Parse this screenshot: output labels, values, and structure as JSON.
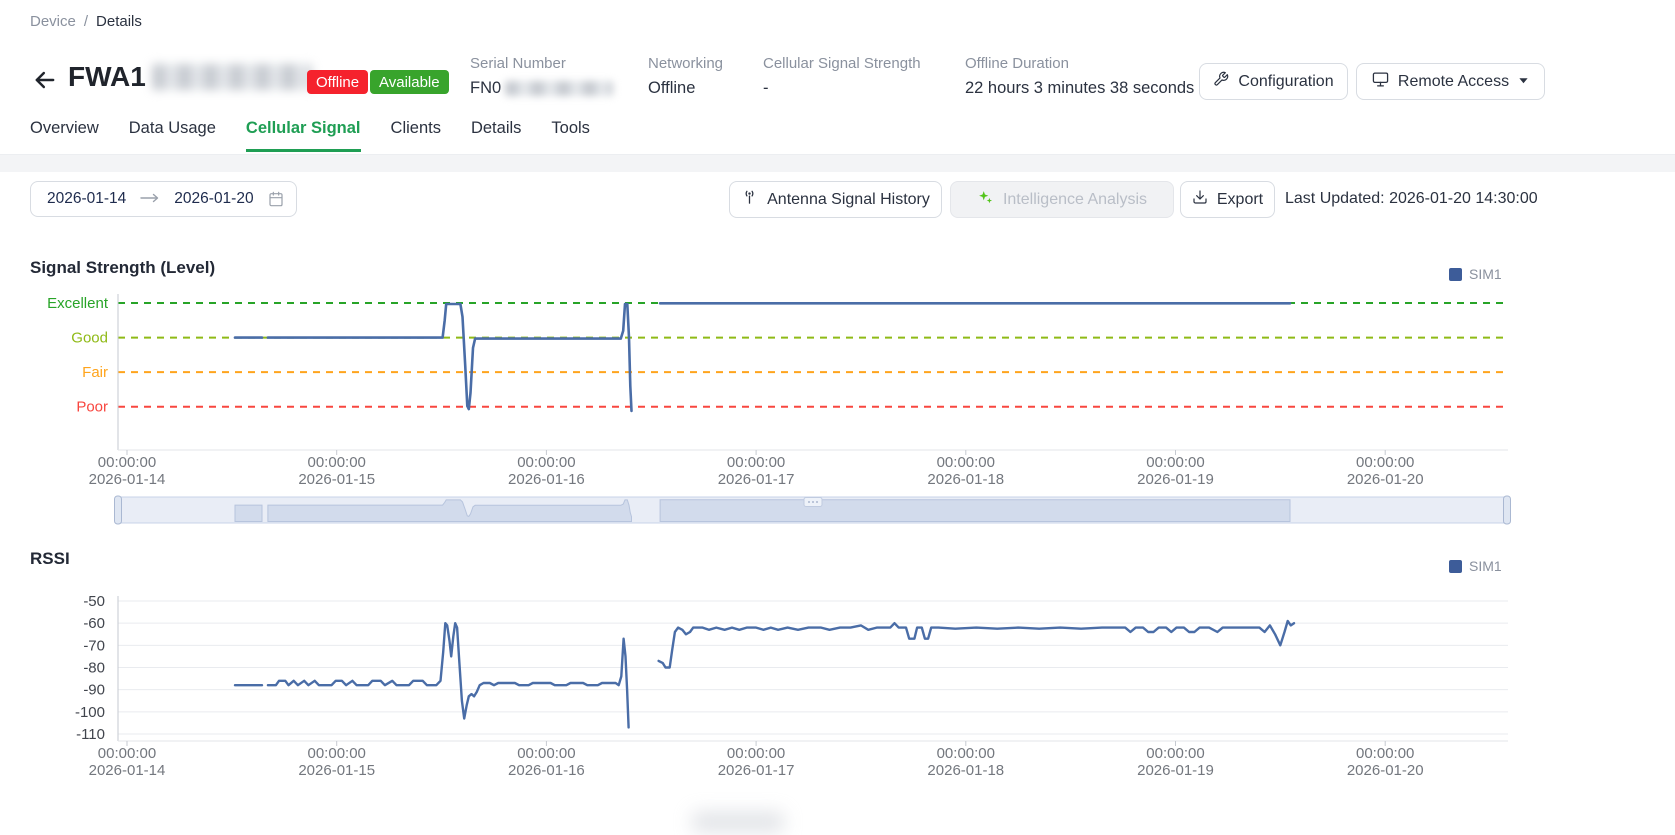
{
  "breadcrumb": {
    "parent": "Device",
    "separator": "/",
    "current": "Details"
  },
  "header": {
    "back_icon": "arrow-left",
    "device_name_prefix": "FWA1",
    "device_name_masked": true,
    "badges": [
      {
        "label": "Offline",
        "color": "#f5222d"
      },
      {
        "label": "Available",
        "color": "#38a42c"
      }
    ],
    "info": [
      {
        "label": "Serial Number",
        "value": "FN0",
        "value_masked": true
      },
      {
        "label": "Networking",
        "value": "Offline"
      },
      {
        "label": "Cellular Signal Strength",
        "value": "-"
      },
      {
        "label": "Offline Duration",
        "value": "22 hours 3 minutes 38 seconds"
      }
    ],
    "buttons": [
      {
        "label": "Configuration",
        "icon": "wrench-icon"
      },
      {
        "label": "Remote Access",
        "icon": "monitor-icon",
        "caret": "caret-down-icon"
      }
    ]
  },
  "tabs": {
    "items": [
      {
        "label": "Overview"
      },
      {
        "label": "Data Usage"
      },
      {
        "label": "Cellular Signal"
      },
      {
        "label": "Clients"
      },
      {
        "label": "Details"
      },
      {
        "label": "Tools"
      }
    ],
    "active": "Cellular Signal",
    "active_color": "#1f9e54"
  },
  "controls": {
    "date_start": "2026-01-14",
    "date_end": "2026-01-20",
    "date_arrow_icon": "arrow-right-icon",
    "calendar_icon": "calendar-icon",
    "antenna_button": {
      "label": "Antenna Signal History",
      "icon": "antenna-icon"
    },
    "intelligence_button": {
      "label": "Intelligence Analysis",
      "icon": "sparkles-icon",
      "disabled": true,
      "icon_color": "#52c41a"
    },
    "export_button": {
      "label": "Export",
      "icon": "download-icon"
    },
    "last_updated": "Last Updated: 2026-01-20 14:30:00"
  },
  "colors": {
    "series_blue": "#4a6da7",
    "legend_blue": "#3d5c99",
    "excellent": "#28a428",
    "good": "#8fba16",
    "fair": "#ffa41c",
    "poor": "#f8463f",
    "grid_gray": "#e9ebef",
    "axis_gray": "#c6cad1",
    "tick_text": "#73777e"
  },
  "chart_data": [
    {
      "type": "line",
      "title": "Signal Strength (Level)",
      "legend": [
        "SIM1"
      ],
      "legend_position": "top-right",
      "series_color": "#4a6da7",
      "y_axis": {
        "type": "category",
        "categories": [
          {
            "name": "Excellent",
            "color": "#28a428",
            "level": 4
          },
          {
            "name": "Good",
            "color": "#8fba16",
            "level": 3
          },
          {
            "name": "Fair",
            "color": "#ffa41c",
            "level": 2
          },
          {
            "name": "Poor",
            "color": "#f8463f",
            "level": 1
          }
        ],
        "gridline_style": "dashed"
      },
      "x_ticks": [
        {
          "time": "00:00:00",
          "date": "2026-01-14"
        },
        {
          "time": "00:00:00",
          "date": "2026-01-15"
        },
        {
          "time": "00:00:00",
          "date": "2026-01-16"
        },
        {
          "time": "00:00:00",
          "date": "2026-01-17"
        },
        {
          "time": "00:00:00",
          "date": "2026-01-18"
        },
        {
          "time": "00:00:00",
          "date": "2026-01-19"
        },
        {
          "time": "00:00:00",
          "date": "2026-01-20"
        }
      ],
      "x_unit": "days_since_2026-01-14",
      "segments": [
        [
          [
            0.515,
            3
          ],
          [
            0.644,
            3
          ]
        ],
        [
          [
            0.672,
            3
          ],
          [
            1.505,
            3
          ],
          [
            1.515,
            3.5
          ],
          [
            1.522,
            3.97
          ],
          [
            1.59,
            3.97
          ],
          [
            1.6,
            3.6
          ],
          [
            1.613,
            2.2
          ],
          [
            1.623,
            1.02
          ],
          [
            1.63,
            0.93
          ],
          [
            1.638,
            1.4
          ],
          [
            1.65,
            2.7
          ],
          [
            1.66,
            2.97
          ],
          [
            2.355,
            2.97
          ],
          [
            2.366,
            3.2
          ],
          [
            2.375,
            3.97
          ],
          [
            2.386,
            3.97
          ],
          [
            2.394,
            3.0
          ],
          [
            2.4,
            1.6
          ],
          [
            2.406,
            0.88
          ]
        ],
        [
          [
            2.542,
            3.99
          ],
          [
            5.546,
            3.99
          ]
        ]
      ],
      "has_datazoom_brush": true
    },
    {
      "type": "line",
      "title": "RSSI",
      "legend": [
        "SIM1"
      ],
      "legend_position": "top-right",
      "series_color": "#4a6da7",
      "ylim": [
        -110,
        -50
      ],
      "y_ticks": [
        -50,
        -60,
        -70,
        -80,
        -90,
        -100,
        -110
      ],
      "x_ticks": [
        {
          "time": "00:00:00",
          "date": "2026-01-14"
        },
        {
          "time": "00:00:00",
          "date": "2026-01-15"
        },
        {
          "time": "00:00:00",
          "date": "2026-01-16"
        },
        {
          "time": "00:00:00",
          "date": "2026-01-17"
        },
        {
          "time": "00:00:00",
          "date": "2026-01-18"
        },
        {
          "time": "00:00:00",
          "date": "2026-01-19"
        },
        {
          "time": "00:00:00",
          "date": "2026-01-20"
        }
      ],
      "x_unit": "days_since_2026-01-14",
      "segments": [
        [
          [
            0.515,
            -88
          ],
          [
            0.644,
            -88
          ]
        ],
        [
          [
            0.672,
            -88
          ],
          [
            0.71,
            -88
          ],
          [
            0.725,
            -86
          ],
          [
            0.755,
            -86
          ],
          [
            0.77,
            -88
          ],
          [
            0.795,
            -86
          ],
          [
            0.815,
            -88
          ],
          [
            0.845,
            -86
          ],
          [
            0.865,
            -88
          ],
          [
            0.895,
            -86
          ],
          [
            0.915,
            -88
          ],
          [
            0.975,
            -88
          ],
          [
            0.995,
            -86
          ],
          [
            1.025,
            -86
          ],
          [
            1.045,
            -88
          ],
          [
            1.075,
            -86
          ],
          [
            1.095,
            -88
          ],
          [
            1.15,
            -88
          ],
          [
            1.17,
            -86
          ],
          [
            1.21,
            -86
          ],
          [
            1.23,
            -88
          ],
          [
            1.265,
            -86
          ],
          [
            1.285,
            -88
          ],
          [
            1.345,
            -88
          ],
          [
            1.365,
            -86
          ],
          [
            1.41,
            -86
          ],
          [
            1.43,
            -88
          ],
          [
            1.475,
            -88
          ],
          [
            1.495,
            -86
          ],
          [
            1.508,
            -73
          ],
          [
            1.518,
            -60
          ],
          [
            1.527,
            -61
          ],
          [
            1.538,
            -68
          ],
          [
            1.546,
            -75
          ],
          [
            1.556,
            -66
          ],
          [
            1.565,
            -60
          ],
          [
            1.574,
            -62
          ],
          [
            1.585,
            -78
          ],
          [
            1.597,
            -95
          ],
          [
            1.608,
            -103
          ],
          [
            1.62,
            -97
          ],
          [
            1.63,
            -93
          ],
          [
            1.643,
            -92
          ],
          [
            1.655,
            -93
          ],
          [
            1.668,
            -91
          ],
          [
            1.682,
            -88
          ],
          [
            1.7,
            -87
          ],
          [
            1.73,
            -87
          ],
          [
            1.75,
            -88
          ],
          [
            1.77,
            -87
          ],
          [
            1.85,
            -87
          ],
          [
            1.87,
            -88
          ],
          [
            1.915,
            -88
          ],
          [
            1.935,
            -87
          ],
          [
            2.02,
            -87
          ],
          [
            2.04,
            -88
          ],
          [
            2.095,
            -88
          ],
          [
            2.115,
            -87
          ],
          [
            2.175,
            -87
          ],
          [
            2.195,
            -88
          ],
          [
            2.245,
            -88
          ],
          [
            2.265,
            -87
          ],
          [
            2.33,
            -87
          ],
          [
            2.345,
            -88
          ],
          [
            2.357,
            -84
          ],
          [
            2.368,
            -67
          ],
          [
            2.377,
            -75
          ],
          [
            2.385,
            -90
          ],
          [
            2.392,
            -107
          ]
        ],
        [
          [
            2.535,
            -77
          ],
          [
            2.555,
            -78
          ],
          [
            2.568,
            -80
          ],
          [
            2.588,
            -80
          ],
          [
            2.6,
            -72
          ],
          [
            2.613,
            -64
          ],
          [
            2.628,
            -62
          ],
          [
            2.648,
            -63
          ],
          [
            2.665,
            -65
          ],
          [
            2.685,
            -64
          ],
          [
            2.7,
            -62
          ],
          [
            2.745,
            -62
          ],
          [
            2.775,
            -63
          ],
          [
            2.81,
            -62
          ],
          [
            2.85,
            -63
          ],
          [
            2.885,
            -62
          ],
          [
            2.92,
            -63
          ],
          [
            2.955,
            -62
          ],
          [
            3.0,
            -62
          ],
          [
            3.035,
            -63
          ],
          [
            3.07,
            -62
          ],
          [
            3.105,
            -63
          ],
          [
            3.15,
            -62
          ],
          [
            3.2,
            -63
          ],
          [
            3.25,
            -62
          ],
          [
            3.31,
            -62
          ],
          [
            3.35,
            -63
          ],
          [
            3.4,
            -62
          ],
          [
            3.45,
            -62
          ],
          [
            3.5,
            -61
          ],
          [
            3.535,
            -63
          ],
          [
            3.575,
            -62
          ],
          [
            3.64,
            -62
          ],
          [
            3.66,
            -60
          ],
          [
            3.68,
            -62
          ],
          [
            3.715,
            -62
          ],
          [
            3.73,
            -67
          ],
          [
            3.755,
            -67
          ],
          [
            3.768,
            -62
          ],
          [
            3.79,
            -62
          ],
          [
            3.805,
            -67
          ],
          [
            3.82,
            -67
          ],
          [
            3.835,
            -62
          ],
          [
            3.87,
            -62
          ],
          [
            3.95,
            -62.5
          ],
          [
            4.05,
            -62
          ],
          [
            4.15,
            -62.5
          ],
          [
            4.25,
            -62
          ],
          [
            4.35,
            -62.5
          ],
          [
            4.45,
            -62
          ],
          [
            4.55,
            -62.5
          ],
          [
            4.65,
            -62
          ],
          [
            4.76,
            -62
          ],
          [
            4.785,
            -64
          ],
          [
            4.81,
            -62
          ],
          [
            4.845,
            -62
          ],
          [
            4.87,
            -64
          ],
          [
            4.895,
            -64
          ],
          [
            4.92,
            -62
          ],
          [
            4.955,
            -62
          ],
          [
            4.98,
            -64
          ],
          [
            5.005,
            -62
          ],
          [
            5.04,
            -62
          ],
          [
            5.065,
            -64
          ],
          [
            5.09,
            -64
          ],
          [
            5.115,
            -62
          ],
          [
            5.16,
            -62
          ],
          [
            5.2,
            -64
          ],
          [
            5.225,
            -62
          ],
          [
            5.3,
            -62
          ],
          [
            5.35,
            -62
          ],
          [
            5.4,
            -62
          ],
          [
            5.425,
            -64
          ],
          [
            5.45,
            -61
          ],
          [
            5.475,
            -65
          ],
          [
            5.5,
            -70
          ],
          [
            5.52,
            -64
          ],
          [
            5.535,
            -59
          ],
          [
            5.55,
            -61
          ],
          [
            5.565,
            -60
          ]
        ]
      ]
    }
  ]
}
